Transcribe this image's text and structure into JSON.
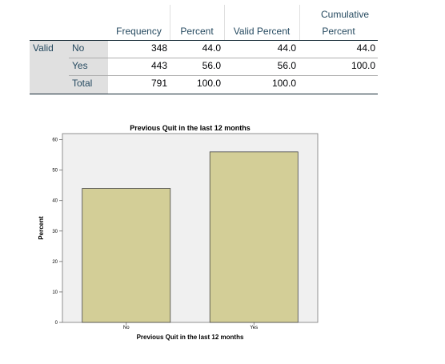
{
  "table": {
    "headers": {
      "frequency": "Frequency",
      "percent": "Percent",
      "valid_percent": "Valid Percent",
      "cumulative_line1": "Cumulative",
      "cumulative_line2": "Percent"
    },
    "group_label": "Valid",
    "rows": [
      {
        "label": "No",
        "frequency": "348",
        "percent": "44.0",
        "valid_percent": "44.0",
        "cumulative_percent": "44.0"
      },
      {
        "label": "Yes",
        "frequency": "443",
        "percent": "56.0",
        "valid_percent": "56.0",
        "cumulative_percent": "100.0"
      },
      {
        "label": "Total",
        "frequency": "791",
        "percent": "100.0",
        "valid_percent": "100.0",
        "cumulative_percent": ""
      }
    ]
  },
  "colors": {
    "bar_fill": "#d3ce97",
    "plot_background": "#f0f0f0",
    "header_text": "#264a60",
    "row_label_background": "#e0e0e0"
  },
  "chart_data": {
    "type": "bar",
    "title": "Previous Quit in the last 12 months",
    "xlabel": "Previous Quit in the last 12 months",
    "ylabel": "Percent",
    "categories": [
      "No",
      "Yes"
    ],
    "values": [
      44.0,
      56.0
    ],
    "ylim": [
      0,
      62
    ],
    "yticks": [
      0,
      10,
      20,
      30,
      40,
      50,
      60
    ],
    "grid": false,
    "legend": "none"
  }
}
